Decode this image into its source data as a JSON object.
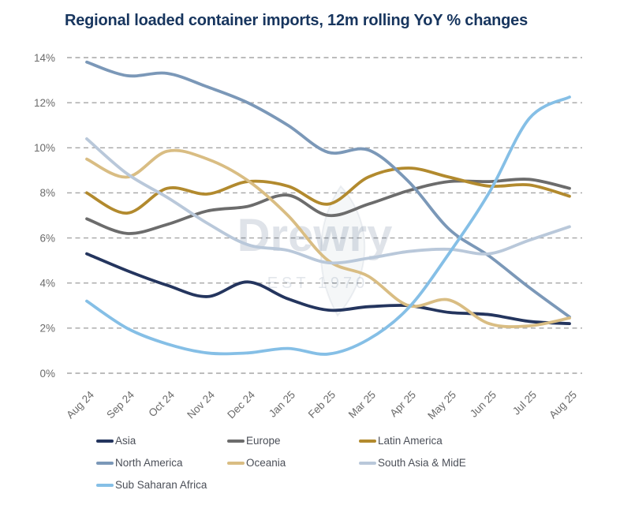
{
  "title": "Regional loaded container imports, 12m rolling YoY % changes",
  "watermark": {
    "line1": "Drewry",
    "line2": "EST 1970"
  },
  "colors": {
    "title": "#17355e",
    "axis_labels": "#6b6b6b",
    "gridline": "#a6a6a6",
    "watermark": "#1f3a66"
  },
  "chart_data": {
    "type": "line",
    "title": "Regional loaded container imports, 12m rolling YoY % changes",
    "x": [
      "Aug 24",
      "Sep 24",
      "Oct 24",
      "Nov 24",
      "Dec 24",
      "Jan 25",
      "Feb 25",
      "Mar 25",
      "Apr 25",
      "May 25",
      "Jun 25",
      "Jul 25",
      "Aug 25"
    ],
    "yticks": [
      "0%",
      "2%",
      "4%",
      "6%",
      "8%",
      "10%",
      "12%",
      "14%"
    ],
    "ylim": [
      0,
      14
    ],
    "ytick_step": 2,
    "unit": "%",
    "grid": "dashed-horizontal",
    "legend_position": "bottom",
    "series": [
      {
        "name": "Asia",
        "color": "#24355e",
        "values": [
          5.3,
          4.55,
          3.9,
          3.4,
          4.05,
          3.3,
          2.8,
          2.95,
          3.0,
          2.7,
          2.6,
          2.3,
          2.2
        ]
      },
      {
        "name": "Europe",
        "color": "#6c6c6c",
        "values": [
          6.85,
          6.2,
          6.6,
          7.2,
          7.4,
          7.9,
          7.0,
          7.5,
          8.1,
          8.5,
          8.5,
          8.6,
          8.2
        ]
      },
      {
        "name": "Latin America",
        "color": "#b28a2e",
        "values": [
          8.0,
          7.1,
          8.2,
          7.95,
          8.5,
          8.3,
          7.5,
          8.7,
          9.1,
          8.7,
          8.3,
          8.35,
          7.85
        ]
      },
      {
        "name": "North America",
        "color": "#7b98b8",
        "values": [
          13.8,
          13.2,
          13.3,
          12.7,
          12.0,
          11.0,
          9.8,
          9.9,
          8.5,
          6.4,
          5.2,
          3.8,
          2.5
        ]
      },
      {
        "name": "Oceania",
        "color": "#d9bd83",
        "values": [
          9.5,
          8.7,
          9.85,
          9.5,
          8.55,
          7.0,
          5.0,
          4.3,
          3.0,
          3.25,
          2.2,
          2.1,
          2.45
        ]
      },
      {
        "name": "South Asia & MidE",
        "color": "#b9c8da",
        "values": [
          10.4,
          8.85,
          7.8,
          6.65,
          5.7,
          5.45,
          4.9,
          5.1,
          5.4,
          5.5,
          5.3,
          5.9,
          6.5
        ]
      },
      {
        "name": "Sub Saharan Africa",
        "color": "#85bfe6",
        "values": [
          3.2,
          2.0,
          1.3,
          0.9,
          0.9,
          1.1,
          0.85,
          1.5,
          2.9,
          5.3,
          8.0,
          11.3,
          12.25
        ]
      }
    ]
  }
}
